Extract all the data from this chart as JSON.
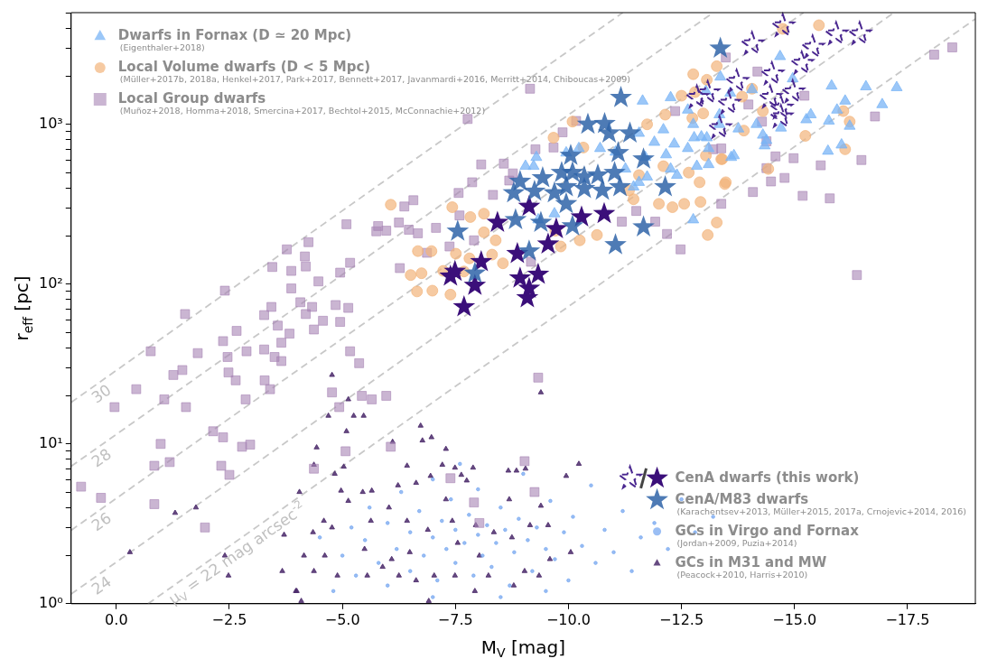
{
  "chart_data": {
    "type": "scatter",
    "xlabel": "M$_{V}$ [mag]",
    "ylabel": "r$_{eff}$ [pc]",
    "xlim": [
      1,
      -19
    ],
    "ylim": [
      1,
      5000
    ],
    "log": "y",
    "grid": false,
    "legend": "top left",
    "xticks": [
      {
        "value": 0,
        "label": "0.0"
      },
      {
        "value": -2.5,
        "label": "−2.5"
      },
      {
        "value": -5,
        "label": "−5.0"
      },
      {
        "value": -7.5,
        "label": "−7.5"
      },
      {
        "value": -10,
        "label": "−10.0"
      },
      {
        "value": -12.5,
        "label": "−12.5"
      },
      {
        "value": -15,
        "label": "−15.0"
      },
      {
        "value": -17.5,
        "label": "−17.5"
      }
    ],
    "yticks": [
      {
        "value": 1,
        "label": "10⁰"
      },
      {
        "value": 2,
        "label": null
      },
      {
        "value": 3,
        "label": null
      },
      {
        "value": 4,
        "label": null
      },
      {
        "value": 5,
        "label": null
      },
      {
        "value": 6,
        "label": null
      },
      {
        "value": 7,
        "label": null
      },
      {
        "value": 8,
        "label": null
      },
      {
        "value": 9,
        "label": null
      },
      {
        "value": 10,
        "label": "10¹"
      },
      {
        "value": 20,
        "label": null
      },
      {
        "value": 30,
        "label": null
      },
      {
        "value": 40,
        "label": null
      },
      {
        "value": 50,
        "label": null
      },
      {
        "value": 60,
        "label": null
      },
      {
        "value": 70,
        "label": null
      },
      {
        "value": 80,
        "label": null
      },
      {
        "value": 90,
        "label": null
      },
      {
        "value": 100,
        "label": "10²"
      },
      {
        "value": 200,
        "label": null
      },
      {
        "value": 300,
        "label": null
      },
      {
        "value": 400,
        "label": null
      },
      {
        "value": 500,
        "label": null
      },
      {
        "value": 600,
        "label": null
      },
      {
        "value": 700,
        "label": null
      },
      {
        "value": 800,
        "label": null
      },
      {
        "value": 900,
        "label": null
      },
      {
        "value": 1000,
        "label": "10³"
      },
      {
        "value": 2000,
        "label": null
      },
      {
        "value": 3000,
        "label": null
      },
      {
        "value": 4000,
        "label": null
      },
      {
        "value": 5000,
        "label": null
      }
    ],
    "series": [
      {
        "type": "scatter",
        "name": "Dwarfs in Fornax (D ≃ 20 Mpc)\n(Eigenthaler+2018)",
        "color": "#7ab4f5",
        "marker": "triangle",
        "x": [
          -11.64,
          -12.64,
          -12.26,
          -13.04,
          -13.58,
          -13.34,
          -12.76,
          -12.1,
          -11.56,
          -12.34,
          -11.9,
          -12.94,
          -12.64,
          -11.7,
          -12.16,
          -13.1,
          -11.04,
          -10.7,
          -9.95,
          -10.23,
          -9.29,
          -9.05,
          -11.26,
          -11.74,
          -12.4,
          -12.84,
          -13.6,
          -11.56,
          -12.26,
          -12.76,
          -11.44,
          -9.33,
          -9.69,
          -9.23,
          -14.68,
          -13.36,
          -14.06,
          -14.96,
          -15.82,
          -16.58,
          -17.26,
          -16.12,
          -16.94,
          -15.94,
          -15.36,
          -15.76,
          -16.22,
          -15.26,
          -14.7,
          -14.16,
          -13.76,
          -13.34,
          -13.06,
          -12.78,
          -13.66,
          -13.1,
          -14.34,
          -14.3,
          -16.04,
          -15.74,
          -14.38
        ],
        "values": [
          1400,
          1230,
          1470,
          1610,
          1570,
          1150,
          1000,
          926,
          880,
          754,
          773,
          836,
          707,
          622,
          646,
          707,
          671,
          707,
          663,
          707,
          622,
          547,
          526,
          469,
          481,
          547,
          622,
          434,
          526,
          253,
          406,
          253,
          276,
          547,
          2660,
          1980,
          1650,
          1930,
          1740,
          1720,
          1700,
          1400,
          1330,
          1230,
          1150,
          1050,
          975,
          1070,
          950,
          1000,
          938,
          1000,
          825,
          825,
          638,
          561,
          735,
          857,
          744,
          680,
          794
        ]
      },
      {
        "type": "scatter",
        "name": "Local Volume dwarfs (D < 5 Mpc)\n(Müller+2017b, 2018a, Henkel+2017, Park+2017, Bennett+2017, Javanmardi+2016, Merritt+2014, Chiboucas+2009)",
        "color": "#f2b47a",
        "marker": "circle",
        "x": [
          -6.07,
          -7.43,
          -7.83,
          -8.13,
          -6.67,
          -6.97,
          -6.51,
          -6.75,
          -6.65,
          -6.99,
          -7.39,
          -7.51,
          -7.81,
          -8.31,
          -8.55,
          -8.13,
          -8.39,
          -9.71,
          -9.83,
          -10.25,
          -10.63,
          -13.08,
          -13.28,
          -12.3,
          -12.56,
          -12.92,
          -12.0,
          -13.46,
          -12.9,
          -13.38,
          -12.66,
          -13.04,
          -12.1,
          -11.44,
          -11.34,
          -11.56,
          -11.74,
          -12.74,
          -12.5,
          -12.8,
          -12.14,
          -10.09,
          -9.67,
          -10.33,
          -7.23,
          -7.69,
          -15.54,
          -14.74,
          -13.28,
          -12.76,
          -13.06,
          -14.06,
          -13.84,
          -12.98,
          -14.3,
          -15.24,
          -16.22,
          -16.08,
          -16.12,
          -13.88,
          -13.48,
          -14.42,
          -13.4
        ],
        "values": [
          314,
          303,
          263,
          276,
          161,
          161,
          114,
          117,
          90,
          91,
          86,
          155,
          145,
          153,
          135,
          211,
          188,
          216,
          172,
          188,
          203,
          203,
          243,
          303,
          318,
          327,
          318,
          423,
          434,
          606,
          499,
          638,
          547,
          340,
          386,
          481,
          1000,
          1095,
          1510,
          1590,
          1150,
          1040,
          825,
          716,
          121,
          120,
          4170,
          3960,
          2310,
          2060,
          1900,
          1670,
          1490,
          1170,
          1210,
          847,
          1040,
          1210,
          698,
          914,
          434,
          526,
          606
        ]
      },
      {
        "type": "scatter",
        "name": "Local Group dwarfs\n(Muñoz+2018, Homma+2018, Smercina+2017, Bechtol+2015, McConnachie+2012)",
        "color": "#a684b4",
        "marker": "square",
        "x": [
          -5.09,
          -5.75,
          -4.25,
          -3.77,
          -4.17,
          -4.19,
          -3.45,
          -3.87,
          -4.47,
          -5.17,
          -4.95,
          -2.4,
          -3.87,
          -1.52,
          -4.07,
          -4.33,
          -4.85,
          -5.13,
          -3.43,
          -3.27,
          -4.19,
          -4.57,
          -4.95,
          -3.57,
          -4.37,
          -3.83,
          -2.66,
          -2.36,
          -3.65,
          -0.76,
          -1.8,
          -2.88,
          -3.27,
          -2.46,
          -3.5,
          -3.65,
          -5.17,
          -5.37,
          -1.46,
          -1.26,
          -2.48,
          -2.64,
          -3.28,
          -3.4,
          -0.44,
          0.04,
          -1.06,
          -1.54,
          -2.86,
          -4.77,
          -5.43,
          -5.65,
          -4.93,
          -2.14,
          -2.36,
          -0.98,
          -2.78,
          -2.96,
          -5.07,
          -0.84,
          -1.18,
          -2.32,
          -2.5,
          -4.37,
          0.78,
          0.34,
          -0.84,
          -1.96,
          -5.97,
          -6.07,
          -9.33,
          -9.03,
          -9.25,
          -7.39,
          -7.91,
          -8.03,
          -9.15,
          -7.77,
          -8.07,
          -9.27,
          -9.67,
          -9.87,
          -10.17,
          -8.57,
          -8.77,
          -7.87,
          -8.69,
          -7.57,
          -8.33,
          -6.57,
          -6.37,
          -7.59,
          -5.79,
          -6.25,
          -5.97,
          -6.47,
          -6.67,
          -7.07,
          -7.91,
          -7.37,
          -6.87,
          -6.27,
          -9.17,
          -11.18,
          -11.5,
          -11.92,
          -12.18,
          -12.48,
          -13.38,
          -12.36,
          -13.2,
          -13.38,
          -13.48,
          -14.18,
          -13.98,
          -14.28,
          -14.38,
          -14.58,
          -14.98,
          -14.38,
          -14.48,
          -14.78,
          -15.58,
          -16.48,
          -16.78,
          -14.08,
          -15.18,
          -15.78,
          -18.09,
          -18.49,
          -16.38,
          -15.22
        ],
        "values": [
          237,
          214,
          183,
          165,
          149,
          129,
          128,
          121,
          104,
          136,
          118,
          91,
          94,
          65,
          77,
          72,
          74,
          71,
          72,
          64,
          65,
          59,
          58,
          55,
          52,
          49,
          51,
          44,
          43,
          38,
          37,
          38,
          39,
          35,
          35,
          33,
          38,
          32,
          29,
          27,
          28,
          25,
          25,
          22,
          22,
          17,
          19,
          17,
          19,
          21,
          20,
          19,
          17,
          12,
          11,
          10,
          9.6,
          9.9,
          9.0,
          7.3,
          7.7,
          7.3,
          6.4,
          7.0,
          5.4,
          4.6,
          4.2,
          3.0,
          20,
          9.6,
          26,
          7.8,
          5.0,
          6.1,
          4.3,
          3.2,
          1670,
          1080,
          561,
          698,
          716,
          891,
          1050,
          568,
          493,
          434,
          445,
          372,
          362,
          335,
          306,
          269,
          231,
          243,
          216,
          219,
          208,
          225,
          188,
          172,
          157,
          126,
          138,
          246,
          287,
          246,
          206,
          165,
          318,
          1210,
          698,
          707,
          2620,
          2140,
          1330,
          1040,
          783,
          630,
          614,
          532,
          439,
          462,
          554,
          598,
          1120,
          377,
          357,
          344,
          2730,
          3030,
          114,
          1510
        ]
      },
      {
        "type": "scatter",
        "color": "#4a2790",
        "marker": "star",
        "line_style": "dashed",
        "x": [
          -14.74,
          -14.06,
          -15.92,
          -16.44,
          -15.4,
          -15.16,
          -14.5,
          -13.72,
          -13.08,
          -13.54,
          -14.46,
          -14.96,
          -14.7,
          -14.7,
          -13.34,
          -12.84
        ],
        "values": [
          4120,
          3180,
          3670,
          3670,
          3030,
          2400,
          2060,
          1850,
          1570,
          1350,
          1470,
          1590,
          1260,
          1110,
          950,
          1470
        ]
      },
      {
        "type": "scatter",
        "name": "CenA dwarfs (this work)",
        "color": "#3b0f7a",
        "marker": "star",
        "x": [
          -7.69,
          -9.09,
          -9.13,
          -8.93,
          -9.33,
          -8.87,
          -8.07,
          -7.93,
          -7.39,
          -7.49,
          -9.55,
          -9.73,
          -10.29,
          -10.79,
          -8.43,
          -9.13
        ],
        "values": [
          72,
          82,
          94,
          109,
          115,
          155,
          138,
          98,
          112,
          120,
          178,
          222,
          263,
          276,
          243,
          306
        ]
      },
      {
        "type": "scatter",
        "name": "CenA/M83 dwarfs\n(Karachentsev+2013, Müller+2015, 2017a, Crnojevic+2014, 2016)",
        "color": "#2f64a8",
        "marker": "star",
        "x": [
          -13.36,
          -11.16,
          -10.43,
          -10.8,
          -10.9,
          -11.36,
          -10.05,
          -11.1,
          -11.66,
          -8.93,
          -9.43,
          -9.85,
          -10.09,
          -10.35,
          -10.65,
          -11.02,
          -9.95,
          -10.35,
          -10.75,
          -11.14,
          -8.79,
          -9.25,
          -9.69,
          -9.95,
          -12.14,
          -8.83,
          -10.09,
          -9.39,
          -7.55,
          -9.13,
          -11.04,
          -11.66,
          -7.93
        ],
        "values": [
          2990,
          1470,
          1000,
          1010,
          880,
          880,
          638,
          663,
          606,
          439,
          462,
          499,
          499,
          469,
          481,
          499,
          406,
          396,
          386,
          406,
          372,
          381,
          372,
          318,
          406,
          253,
          231,
          243,
          214,
          161,
          176,
          228,
          117
        ]
      },
      {
        "type": "scatter",
        "name": "GCs in Virgo and Fornax\n(Jordan+2009, Puzia+2014)",
        "color": "#6fa3f0",
        "marker": "circle",
        "x": [
          -5.0,
          -5.2,
          -5.3,
          -5.5,
          -5.6,
          -5.8,
          -6.0,
          -6.0,
          -6.2,
          -6.3,
          -6.5,
          -6.5,
          -6.7,
          -6.8,
          -7.0,
          -7.0,
          -7.1,
          -7.2,
          -7.3,
          -7.4,
          -7.5,
          -7.5,
          -7.6,
          -7.7,
          -7.8,
          -7.9,
          -8.0,
          -8.0,
          -8.1,
          -8.2,
          -8.3,
          -8.4,
          -8.5,
          -8.6,
          -8.7,
          -8.8,
          -8.9,
          -9.0,
          -9.1,
          -9.2,
          -9.3,
          -9.5,
          -9.6,
          -9.7,
          -9.9,
          -10.0,
          -10.1,
          -10.3,
          -10.5,
          -10.6,
          -10.8,
          -11.0,
          -11.2,
          -11.4,
          -11.6,
          -11.9,
          -12.2,
          -12.5,
          -12.8,
          -13.2,
          -4.5,
          -4.8,
          -7.0,
          -8.5,
          -9.5
        ],
        "values": [
          2.0,
          3.0,
          1.5,
          2.5,
          4.0,
          1.8,
          3.2,
          1.3,
          2.2,
          5.0,
          2.8,
          1.6,
          3.8,
          2.0,
          2.6,
          6.0,
          1.4,
          3.3,
          2.2,
          4.5,
          1.8,
          2.9,
          7.5,
          2.4,
          3.6,
          1.5,
          2.7,
          5.2,
          2.0,
          3.1,
          1.7,
          2.4,
          4.0,
          2.9,
          1.3,
          2.1,
          3.4,
          6.5,
          2.5,
          1.6,
          3.0,
          2.2,
          4.4,
          1.9,
          2.8,
          1.4,
          3.5,
          2.3,
          5.5,
          1.8,
          2.9,
          2.1,
          3.8,
          1.6,
          2.6,
          3.2,
          2.2,
          4.5,
          2.8,
          3.5,
          2.6,
          1.2,
          1.1,
          1.1,
          1.2
        ]
      },
      {
        "type": "scatter",
        "name": "GCs in M31 and MW\n(Peacock+2010, Harris+2010)",
        "color": "#4b2a6b",
        "marker": "triangle",
        "x": [
          -4.77,
          -5.13,
          -4.69,
          -5.25,
          -5.47,
          -5.09,
          -4.43,
          -4.37,
          -5.03,
          -4.83,
          -1.76,
          -1.3,
          -0.3,
          -2.4,
          -2.48,
          -3.67,
          -3.97,
          -4.09,
          -4.37,
          -4.61,
          -4.15,
          -3.71,
          -4.35,
          -4.77,
          -4.59,
          -4.05,
          -4.97,
          -5.45,
          -5.13,
          -9.39,
          -6.73,
          -6.97,
          -6.77,
          -7.29,
          -6.11,
          -6.43,
          -7.21,
          -7.89,
          -8.67,
          -8.85,
          -9.05,
          -10.23,
          -9.95,
          -7.49,
          -7.63,
          -7.75,
          -6.95,
          -6.63,
          -6.23,
          -5.65,
          -7.29,
          -8.69,
          -9.39,
          -9.55,
          -10.05,
          -9.59,
          -9.35,
          -9.03,
          -8.79,
          -7.93,
          -6.91,
          -8.23,
          -7.49,
          -7.03,
          -6.63,
          -6.25,
          -5.89,
          -5.55,
          -5.49,
          -5.63,
          -6.03,
          -6.43,
          -6.89,
          -7.43,
          -7.95,
          -8.35,
          -8.75,
          -9.15,
          -7.55,
          -8.03,
          -6.49,
          -6.09,
          -4.89,
          -3.99
        ],
        "values": [
          27,
          19,
          15,
          15,
          15,
          12,
          9.5,
          7.4,
          7.2,
          6.5,
          4.0,
          3.7,
          2.1,
          2.0,
          1.5,
          1.6,
          1.2,
          1.04,
          1.6,
          2.0,
          2.0,
          2.7,
          2.8,
          3.0,
          3.3,
          5.0,
          5.1,
          5.0,
          4.4,
          21,
          13,
          11,
          10.5,
          9.3,
          10.3,
          7.3,
          7.4,
          7.1,
          6.8,
          6.8,
          7.0,
          7.5,
          6.3,
          7.1,
          6.4,
          5.9,
          6.3,
          5.7,
          5.5,
          5.1,
          4.5,
          4.5,
          4.1,
          3.1,
          2.1,
          1.9,
          1.5,
          1.6,
          1.3,
          1.2,
          1.04,
          1.5,
          1.5,
          1.5,
          1.4,
          1.5,
          1.7,
          1.5,
          2.2,
          3.3,
          4.0,
          3.3,
          2.9,
          3.3,
          3.1,
          2.8,
          2.6,
          3.1,
          2.4,
          2.0,
          2.1,
          1.9,
          1.5,
          1.2
        ]
      },
      {
        "type": "line",
        "name": "30",
        "color": "#c8c8c8",
        "line_style": "dashed",
        "marker": "none",
        "x": [
          1,
          -11.2
        ],
        "values": [
          18.2,
          5000
        ]
      },
      {
        "type": "line",
        "name": "28",
        "color": "#c8c8c8",
        "line_style": "dashed",
        "marker": "none",
        "x": [
          1,
          -13.2
        ],
        "values": [
          7.24,
          5000
        ]
      },
      {
        "type": "line",
        "name": "26",
        "color": "#c8c8c8",
        "line_style": "dashed",
        "marker": "none",
        "x": [
          1,
          -15.2
        ],
        "values": [
          2.88,
          5000
        ]
      },
      {
        "type": "line",
        "name": "24",
        "color": "#c8c8c8",
        "line_style": "dashed",
        "marker": "none",
        "x": [
          1,
          -17.2
        ],
        "values": [
          1.15,
          5000
        ]
      },
      {
        "type": "line",
        "name": "μ$_{V}$ = 22 mag arcsec$^{-2}$",
        "color": "#c8c8c8",
        "line_style": "dashed",
        "marker": "none",
        "x": [
          -0.7,
          -19
        ],
        "values": [
          1,
          4570
        ]
      }
    ]
  }
}
